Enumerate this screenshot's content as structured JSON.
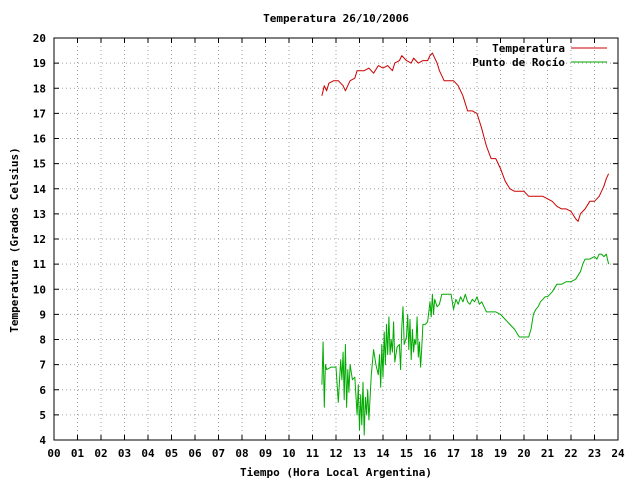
{
  "chart_data": {
    "type": "line",
    "title": "Temperatura 26/10/2006",
    "xlabel": "Tiempo (Hora Local Argentina)",
    "ylabel": "Temperatura (Grados Celsius)",
    "xlim": [
      0,
      24
    ],
    "ylim": [
      4,
      20
    ],
    "x_ticks": [
      "00",
      "01",
      "02",
      "03",
      "04",
      "05",
      "06",
      "07",
      "08",
      "09",
      "10",
      "11",
      "12",
      "13",
      "14",
      "15",
      "16",
      "17",
      "18",
      "19",
      "20",
      "21",
      "22",
      "23",
      "24"
    ],
    "y_ticks": [
      4,
      5,
      6,
      7,
      8,
      9,
      10,
      11,
      12,
      13,
      14,
      15,
      16,
      17,
      18,
      19,
      20
    ],
    "grid": true,
    "legend_position": "top-right",
    "series": [
      {
        "name": "Temperatura",
        "color": "#cc0000",
        "points": [
          [
            11.4,
            17.7
          ],
          [
            11.5,
            18.1
          ],
          [
            11.6,
            17.9
          ],
          [
            11.7,
            18.2
          ],
          [
            11.9,
            18.3
          ],
          [
            12.1,
            18.3
          ],
          [
            12.3,
            18.1
          ],
          [
            12.4,
            17.9
          ],
          [
            12.5,
            18.1
          ],
          [
            12.6,
            18.3
          ],
          [
            12.8,
            18.4
          ],
          [
            12.9,
            18.7
          ],
          [
            13.2,
            18.7
          ],
          [
            13.4,
            18.8
          ],
          [
            13.6,
            18.6
          ],
          [
            13.8,
            18.9
          ],
          [
            14.0,
            18.8
          ],
          [
            14.2,
            18.9
          ],
          [
            14.4,
            18.7
          ],
          [
            14.5,
            19.0
          ],
          [
            14.7,
            19.1
          ],
          [
            14.8,
            19.3
          ],
          [
            15.0,
            19.1
          ],
          [
            15.2,
            19.0
          ],
          [
            15.3,
            19.2
          ],
          [
            15.5,
            19.0
          ],
          [
            15.7,
            19.1
          ],
          [
            15.9,
            19.1
          ],
          [
            16.0,
            19.3
          ],
          [
            16.1,
            19.4
          ],
          [
            16.2,
            19.2
          ],
          [
            16.3,
            19.0
          ],
          [
            16.4,
            18.7
          ],
          [
            16.5,
            18.5
          ],
          [
            16.6,
            18.3
          ],
          [
            16.8,
            18.3
          ],
          [
            17.0,
            18.3
          ],
          [
            17.2,
            18.1
          ],
          [
            17.4,
            17.7
          ],
          [
            17.6,
            17.1
          ],
          [
            17.8,
            17.1
          ],
          [
            18.0,
            17.0
          ],
          [
            18.2,
            16.4
          ],
          [
            18.4,
            15.7
          ],
          [
            18.6,
            15.2
          ],
          [
            18.8,
            15.2
          ],
          [
            19.0,
            14.8
          ],
          [
            19.2,
            14.3
          ],
          [
            19.4,
            14.0
          ],
          [
            19.6,
            13.9
          ],
          [
            19.8,
            13.9
          ],
          [
            20.0,
            13.9
          ],
          [
            20.2,
            13.7
          ],
          [
            20.5,
            13.7
          ],
          [
            20.8,
            13.7
          ],
          [
            21.0,
            13.6
          ],
          [
            21.2,
            13.5
          ],
          [
            21.4,
            13.3
          ],
          [
            21.6,
            13.2
          ],
          [
            21.8,
            13.2
          ],
          [
            22.0,
            13.1
          ],
          [
            22.2,
            12.8
          ],
          [
            22.3,
            12.7
          ],
          [
            22.4,
            13.0
          ],
          [
            22.6,
            13.2
          ],
          [
            22.8,
            13.5
          ],
          [
            23.0,
            13.5
          ],
          [
            23.2,
            13.7
          ],
          [
            23.4,
            14.1
          ],
          [
            23.5,
            14.4
          ],
          [
            23.6,
            14.6
          ]
        ]
      },
      {
        "name": "Punto de Rocío",
        "color": "#00aa00",
        "points": [
          [
            11.4,
            6.2
          ],
          [
            11.45,
            7.9
          ],
          [
            11.5,
            5.3
          ],
          [
            11.55,
            7.0
          ],
          [
            11.6,
            6.8
          ],
          [
            11.8,
            6.9
          ],
          [
            12.0,
            6.9
          ],
          [
            12.1,
            5.5
          ],
          [
            12.2,
            7.2
          ],
          [
            12.25,
            6.4
          ],
          [
            12.3,
            7.5
          ],
          [
            12.35,
            5.6
          ],
          [
            12.4,
            7.8
          ],
          [
            12.45,
            5.3
          ],
          [
            12.5,
            6.8
          ],
          [
            12.55,
            5.9
          ],
          [
            12.6,
            7.0
          ],
          [
            12.7,
            6.4
          ],
          [
            12.8,
            6.5
          ],
          [
            12.9,
            5.0
          ],
          [
            12.95,
            6.2
          ],
          [
            13.0,
            4.4
          ],
          [
            13.05,
            5.8
          ],
          [
            13.1,
            4.6
          ],
          [
            13.15,
            6.3
          ],
          [
            13.2,
            4.2
          ],
          [
            13.25,
            5.7
          ],
          [
            13.3,
            5.0
          ],
          [
            13.35,
            6.0
          ],
          [
            13.4,
            4.8
          ],
          [
            13.5,
            6.6
          ],
          [
            13.6,
            7.6
          ],
          [
            13.7,
            7.0
          ],
          [
            13.8,
            6.6
          ],
          [
            13.85,
            7.4
          ],
          [
            13.9,
            6.1
          ],
          [
            13.95,
            7.8
          ],
          [
            14.0,
            6.5
          ],
          [
            14.05,
            8.3
          ],
          [
            14.1,
            7.0
          ],
          [
            14.15,
            8.6
          ],
          [
            14.2,
            7.4
          ],
          [
            14.25,
            8.9
          ],
          [
            14.3,
            7.4
          ],
          [
            14.35,
            8.0
          ],
          [
            14.4,
            7.5
          ],
          [
            14.45,
            8.7
          ],
          [
            14.5,
            7.1
          ],
          [
            14.6,
            7.7
          ],
          [
            14.7,
            7.8
          ],
          [
            14.75,
            6.8
          ],
          [
            14.8,
            8.5
          ],
          [
            14.85,
            9.3
          ],
          [
            14.9,
            7.8
          ],
          [
            15.0,
            8.1
          ],
          [
            15.05,
            9.0
          ],
          [
            15.1,
            7.6
          ],
          [
            15.15,
            8.8
          ],
          [
            15.2,
            7.2
          ],
          [
            15.25,
            8.4
          ],
          [
            15.3,
            7.5
          ],
          [
            15.35,
            8.0
          ],
          [
            15.4,
            7.8
          ],
          [
            15.45,
            8.9
          ],
          [
            15.5,
            7.3
          ],
          [
            15.55,
            7.9
          ],
          [
            15.6,
            6.9
          ],
          [
            15.65,
            7.7
          ],
          [
            15.7,
            8.6
          ],
          [
            15.8,
            8.6
          ],
          [
            15.9,
            8.7
          ],
          [
            16.0,
            9.5
          ],
          [
            16.05,
            8.9
          ],
          [
            16.1,
            9.8
          ],
          [
            16.15,
            9.0
          ],
          [
            16.2,
            9.6
          ],
          [
            16.3,
            9.3
          ],
          [
            16.4,
            9.4
          ],
          [
            16.5,
            9.8
          ],
          [
            16.7,
            9.8
          ],
          [
            16.9,
            9.8
          ],
          [
            17.0,
            9.2
          ],
          [
            17.1,
            9.6
          ],
          [
            17.2,
            9.4
          ],
          [
            17.3,
            9.7
          ],
          [
            17.4,
            9.5
          ],
          [
            17.5,
            9.8
          ],
          [
            17.6,
            9.5
          ],
          [
            17.7,
            9.4
          ],
          [
            17.8,
            9.6
          ],
          [
            17.9,
            9.5
          ],
          [
            18.0,
            9.7
          ],
          [
            18.1,
            9.4
          ],
          [
            18.2,
            9.5
          ],
          [
            18.3,
            9.3
          ],
          [
            18.4,
            9.1
          ],
          [
            18.6,
            9.1
          ],
          [
            18.8,
            9.1
          ],
          [
            19.0,
            9.0
          ],
          [
            19.2,
            8.8
          ],
          [
            19.4,
            8.6
          ],
          [
            19.6,
            8.4
          ],
          [
            19.8,
            8.1
          ],
          [
            20.0,
            8.1
          ],
          [
            20.2,
            8.1
          ],
          [
            20.3,
            8.4
          ],
          [
            20.4,
            9.0
          ],
          [
            20.5,
            9.2
          ],
          [
            20.6,
            9.3
          ],
          [
            20.7,
            9.5
          ],
          [
            20.8,
            9.6
          ],
          [
            20.9,
            9.7
          ],
          [
            21.0,
            9.7
          ],
          [
            21.2,
            9.9
          ],
          [
            21.4,
            10.2
          ],
          [
            21.6,
            10.2
          ],
          [
            21.8,
            10.3
          ],
          [
            22.0,
            10.3
          ],
          [
            22.2,
            10.4
          ],
          [
            22.4,
            10.7
          ],
          [
            22.5,
            11.0
          ],
          [
            22.6,
            11.2
          ],
          [
            22.8,
            11.2
          ],
          [
            23.0,
            11.3
          ],
          [
            23.1,
            11.2
          ],
          [
            23.2,
            11.4
          ],
          [
            23.3,
            11.4
          ],
          [
            23.4,
            11.3
          ],
          [
            23.5,
            11.4
          ],
          [
            23.6,
            11.0
          ]
        ]
      }
    ]
  }
}
